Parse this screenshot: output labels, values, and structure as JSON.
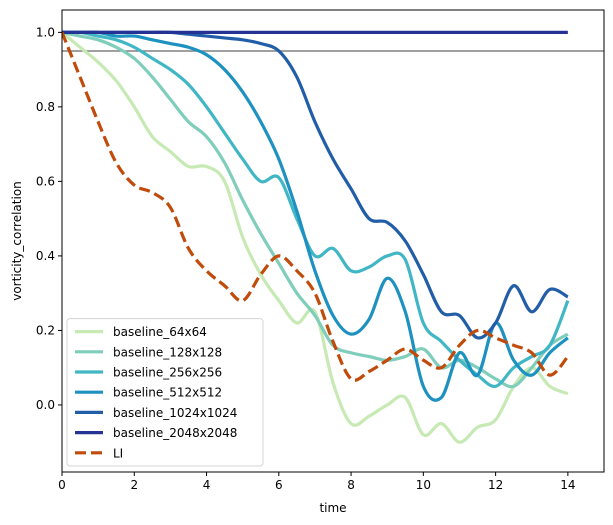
{
  "chart_data": {
    "type": "line",
    "title": "",
    "xlabel": "time",
    "ylabel": "vorticity_correlation",
    "xlim": [
      0,
      15
    ],
    "ylim": [
      -0.18,
      1.06
    ],
    "xticks": [
      0,
      2,
      4,
      6,
      8,
      10,
      12,
      14
    ],
    "yticks": [
      0.0,
      0.2,
      0.4,
      0.6,
      0.8,
      1.0
    ],
    "xtick_labels": [
      "0",
      "2",
      "4",
      "6",
      "8",
      "10",
      "12",
      "14"
    ],
    "ytick_labels": [
      "0.0",
      "0.2",
      "0.4",
      "0.6",
      "0.8",
      "1.0"
    ],
    "hline": {
      "y": 0.95,
      "color": "#808080"
    },
    "legend_location": "lower-left",
    "series": [
      {
        "name": "baseline_64x64",
        "color": "#c7e9b4",
        "dash": false,
        "x": [
          0,
          0.5,
          1.0,
          1.5,
          2.0,
          2.5,
          3.0,
          3.5,
          4.0,
          4.5,
          5.0,
          5.5,
          6.0,
          6.5,
          7.0,
          7.5,
          8.0,
          8.5,
          9.0,
          9.5,
          10.0,
          10.5,
          11.0,
          11.5,
          12.0,
          12.5,
          13.0,
          13.5,
          14.0
        ],
        "y": [
          1.0,
          0.96,
          0.92,
          0.87,
          0.8,
          0.72,
          0.68,
          0.64,
          0.64,
          0.6,
          0.45,
          0.35,
          0.28,
          0.22,
          0.25,
          0.06,
          -0.05,
          -0.03,
          0.0,
          0.02,
          -0.08,
          -0.05,
          -0.1,
          -0.06,
          -0.04,
          0.05,
          0.1,
          0.05,
          0.03
        ]
      },
      {
        "name": "baseline_128x128",
        "color": "#7fcdbb",
        "dash": false,
        "x": [
          0,
          0.5,
          1.0,
          1.5,
          2.0,
          2.5,
          3.0,
          3.5,
          4.0,
          4.5,
          5.0,
          5.5,
          6.0,
          6.5,
          7.0,
          7.5,
          8.0,
          8.5,
          9.0,
          9.5,
          10.0,
          10.5,
          11.0,
          11.5,
          12.0,
          12.5,
          13.0,
          13.5,
          14.0
        ],
        "y": [
          1.0,
          0.99,
          0.98,
          0.96,
          0.93,
          0.88,
          0.82,
          0.76,
          0.72,
          0.65,
          0.55,
          0.46,
          0.38,
          0.3,
          0.24,
          0.16,
          0.14,
          0.13,
          0.12,
          0.13,
          0.15,
          0.1,
          0.12,
          0.1,
          0.07,
          0.05,
          0.1,
          0.16,
          0.19
        ]
      },
      {
        "name": "baseline_256x256",
        "color": "#41b6c4",
        "dash": false,
        "x": [
          0,
          0.5,
          1.0,
          1.5,
          2.0,
          2.5,
          3.0,
          3.5,
          4.0,
          4.5,
          5.0,
          5.5,
          6.0,
          6.5,
          7.0,
          7.5,
          8.0,
          8.5,
          9.0,
          9.5,
          10.0,
          10.5,
          11.0,
          11.5,
          12.0,
          12.5,
          13.0,
          13.5,
          14.0
        ],
        "y": [
          1.0,
          1.0,
          0.99,
          0.98,
          0.96,
          0.93,
          0.9,
          0.86,
          0.8,
          0.73,
          0.66,
          0.6,
          0.61,
          0.5,
          0.4,
          0.42,
          0.36,
          0.37,
          0.4,
          0.39,
          0.22,
          0.17,
          0.12,
          0.08,
          0.05,
          0.1,
          0.13,
          0.16,
          0.28
        ]
      },
      {
        "name": "baseline_512x512",
        "color": "#1d91c0",
        "dash": false,
        "x": [
          0,
          0.5,
          1.0,
          1.5,
          2.0,
          2.5,
          3.0,
          3.5,
          4.0,
          4.5,
          5.0,
          5.5,
          6.0,
          6.5,
          7.0,
          7.5,
          8.0,
          8.5,
          9.0,
          9.5,
          10.0,
          10.5,
          11.0,
          11.5,
          12.0,
          12.5,
          13.0,
          13.5,
          14.0
        ],
        "y": [
          1.0,
          1.0,
          1.0,
          0.99,
          0.99,
          0.98,
          0.97,
          0.96,
          0.94,
          0.9,
          0.84,
          0.76,
          0.66,
          0.52,
          0.36,
          0.24,
          0.19,
          0.23,
          0.34,
          0.25,
          0.05,
          0.02,
          0.14,
          0.08,
          0.22,
          0.12,
          0.08,
          0.14,
          0.18
        ]
      },
      {
        "name": "baseline_1024x1024",
        "color": "#225ea8",
        "dash": false,
        "x": [
          0,
          0.5,
          1.0,
          1.5,
          2.0,
          2.5,
          3.0,
          3.5,
          4.0,
          4.5,
          5.0,
          5.5,
          6.0,
          6.5,
          7.0,
          7.5,
          8.0,
          8.5,
          9.0,
          9.5,
          10.0,
          10.5,
          11.0,
          11.5,
          12.0,
          12.5,
          13.0,
          13.5,
          14.0
        ],
        "y": [
          1.0,
          1.0,
          1.0,
          1.0,
          1.0,
          1.0,
          1.0,
          0.995,
          0.99,
          0.985,
          0.98,
          0.97,
          0.95,
          0.88,
          0.76,
          0.66,
          0.58,
          0.5,
          0.49,
          0.44,
          0.35,
          0.25,
          0.24,
          0.18,
          0.22,
          0.32,
          0.25,
          0.31,
          0.29
        ]
      },
      {
        "name": "baseline_2048x2048",
        "color": "#253494",
        "dash": false,
        "x": [
          0,
          1,
          2,
          3,
          4,
          5,
          6,
          7,
          8,
          9,
          10,
          11,
          12,
          13,
          14
        ],
        "y": [
          1.0,
          1.0,
          1.0,
          1.0,
          1.0,
          1.0,
          1.0,
          1.0,
          1.0,
          1.0,
          1.0,
          1.0,
          1.0,
          1.0,
          1.0
        ]
      },
      {
        "name": "LI",
        "color": "#c04b0a",
        "dash": true,
        "x": [
          0,
          0.5,
          1.0,
          1.5,
          2.0,
          2.5,
          3.0,
          3.5,
          4.0,
          4.5,
          5.0,
          5.5,
          6.0,
          6.5,
          7.0,
          7.5,
          8.0,
          8.5,
          9.0,
          9.5,
          10.0,
          10.5,
          11.0,
          11.5,
          12.0,
          12.5,
          13.0,
          13.5,
          14.0
        ],
        "y": [
          1.0,
          0.88,
          0.76,
          0.65,
          0.59,
          0.57,
          0.53,
          0.42,
          0.36,
          0.32,
          0.28,
          0.35,
          0.4,
          0.36,
          0.3,
          0.17,
          0.07,
          0.09,
          0.12,
          0.15,
          0.12,
          0.1,
          0.16,
          0.2,
          0.18,
          0.16,
          0.14,
          0.08,
          0.13
        ]
      }
    ]
  }
}
